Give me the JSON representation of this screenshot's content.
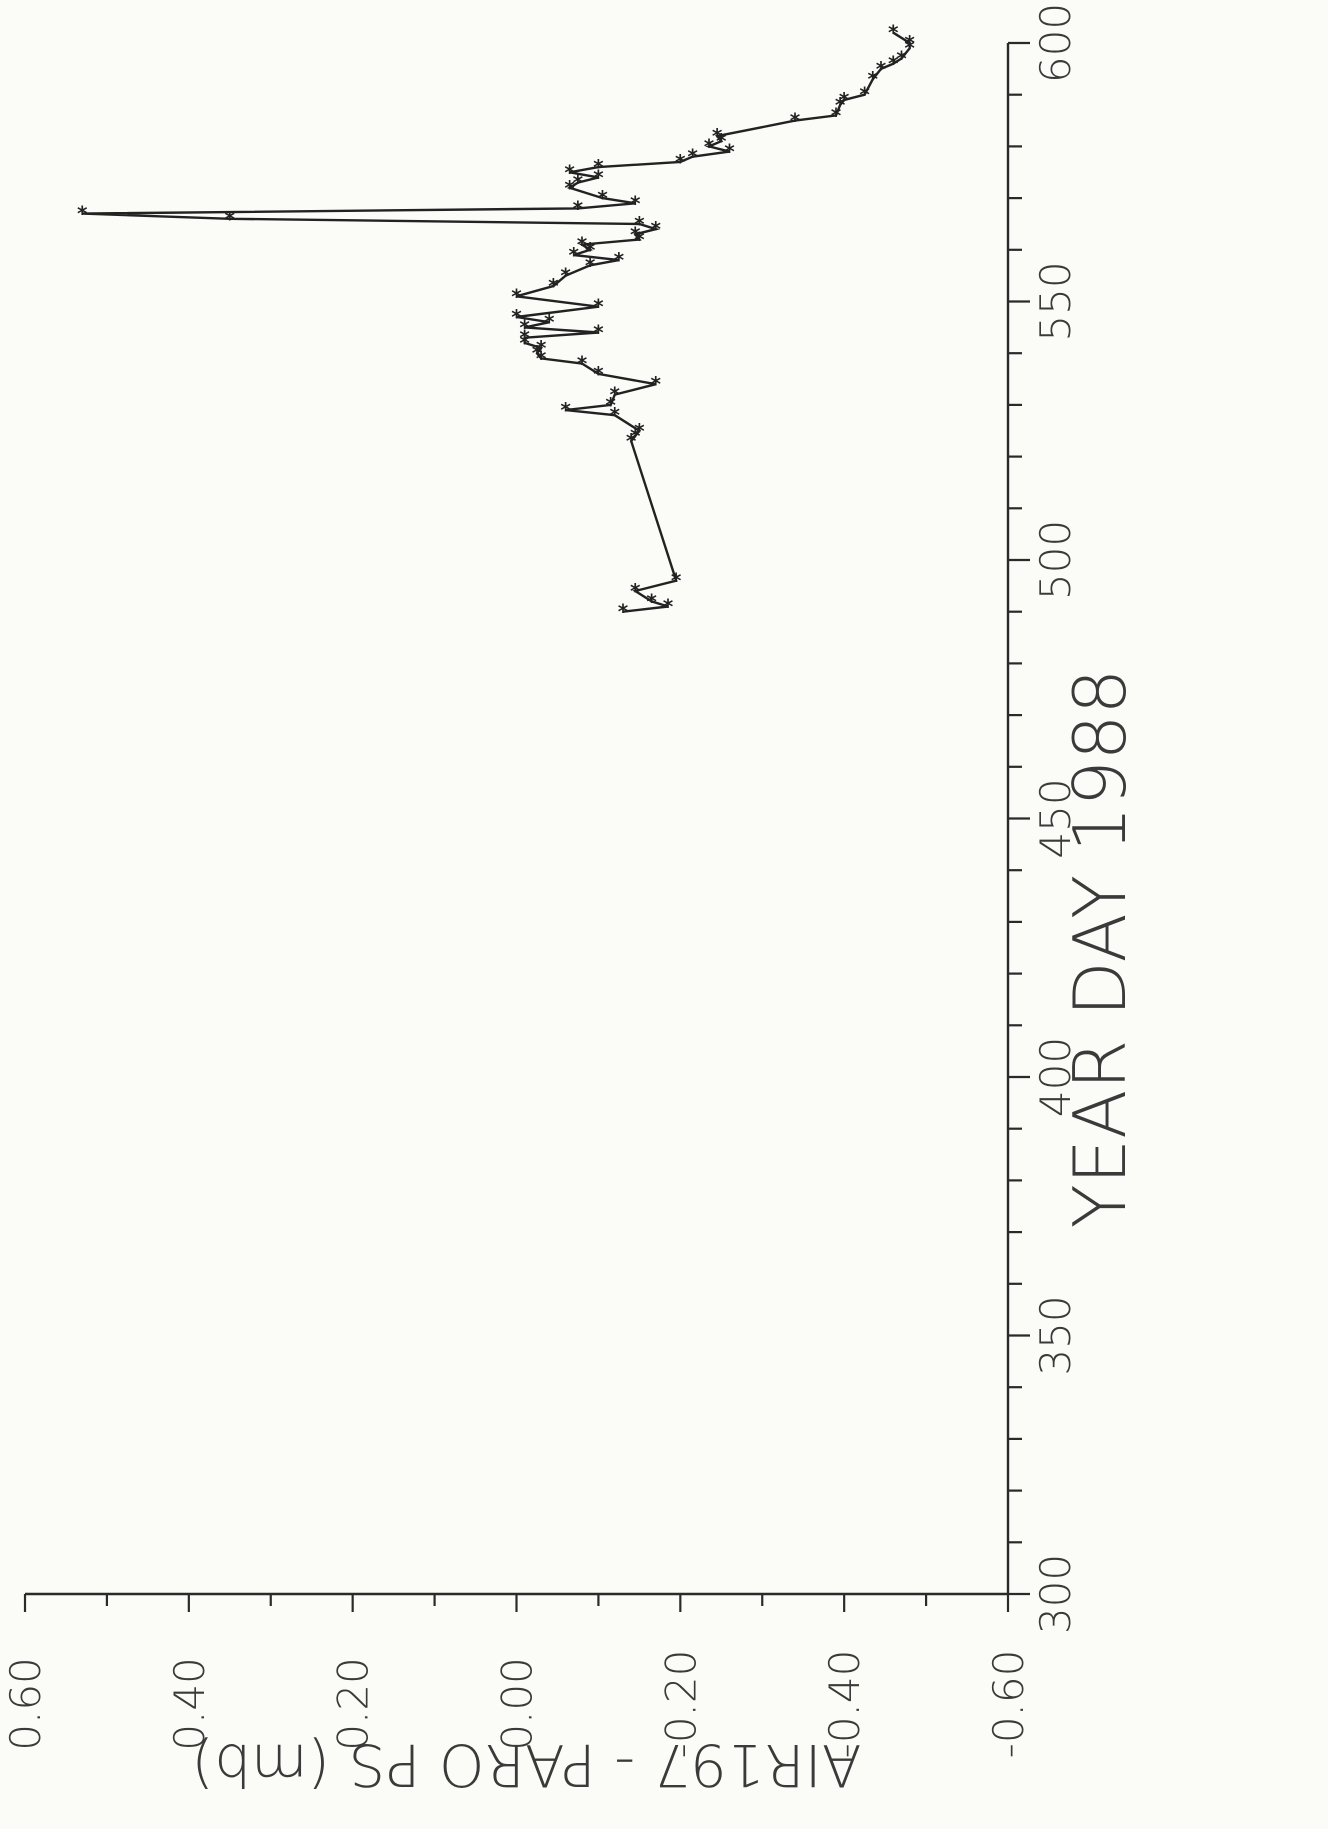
{
  "chart_data": {
    "type": "line",
    "xlabel": "YEAR DAY 1988",
    "ylabel": "AIR197 - PARO PS (mb)",
    "xlim": [
      300,
      600
    ],
    "ylim": [
      -0.6,
      0.6
    ],
    "x_ticks": [
      "300",
      "350",
      "400",
      "450",
      "500",
      "550",
      "600"
    ],
    "y_ticks": [
      "0.60",
      "0.40",
      "0.20",
      "0.00",
      "-0.20",
      "-0.40",
      "-0.60"
    ],
    "marker": "*",
    "series": [
      {
        "x": [
          490,
          491,
          492,
          494,
          496,
          523,
          524,
          525,
          528,
          529,
          530,
          532,
          534,
          536,
          538,
          539,
          540,
          541,
          542,
          543,
          544,
          545,
          546,
          547,
          549,
          551,
          553,
          555,
          557,
          558,
          559,
          560,
          561,
          562,
          563,
          564,
          565,
          566,
          567,
          568,
          569,
          570,
          572,
          573,
          574,
          575,
          576,
          577,
          578,
          579,
          580,
          581,
          582,
          585,
          586,
          588,
          589,
          590,
          593,
          595,
          596,
          597,
          599,
          600,
          602
        ],
        "y": [
          -0.13,
          -0.185,
          -0.165,
          -0.145,
          -0.195,
          -0.14,
          -0.145,
          -0.15,
          -0.12,
          -0.06,
          -0.115,
          -0.12,
          -0.17,
          -0.1,
          -0.08,
          -0.03,
          -0.025,
          -0.03,
          -0.01,
          -0.01,
          -0.1,
          -0.01,
          -0.04,
          0.0,
          -0.1,
          0.0,
          -0.045,
          -0.06,
          -0.09,
          -0.125,
          -0.07,
          -0.09,
          -0.08,
          -0.15,
          -0.145,
          -0.17,
          -0.15,
          0.35,
          0.53,
          -0.075,
          -0.145,
          -0.105,
          -0.065,
          -0.075,
          -0.1,
          -0.065,
          -0.1,
          -0.2,
          -0.215,
          -0.26,
          -0.235,
          -0.25,
          -0.245,
          -0.34,
          -0.39,
          -0.395,
          -0.4,
          -0.425,
          -0.435,
          -0.445,
          -0.46,
          -0.47,
          -0.48,
          -0.48,
          -0.46
        ]
      }
    ]
  }
}
